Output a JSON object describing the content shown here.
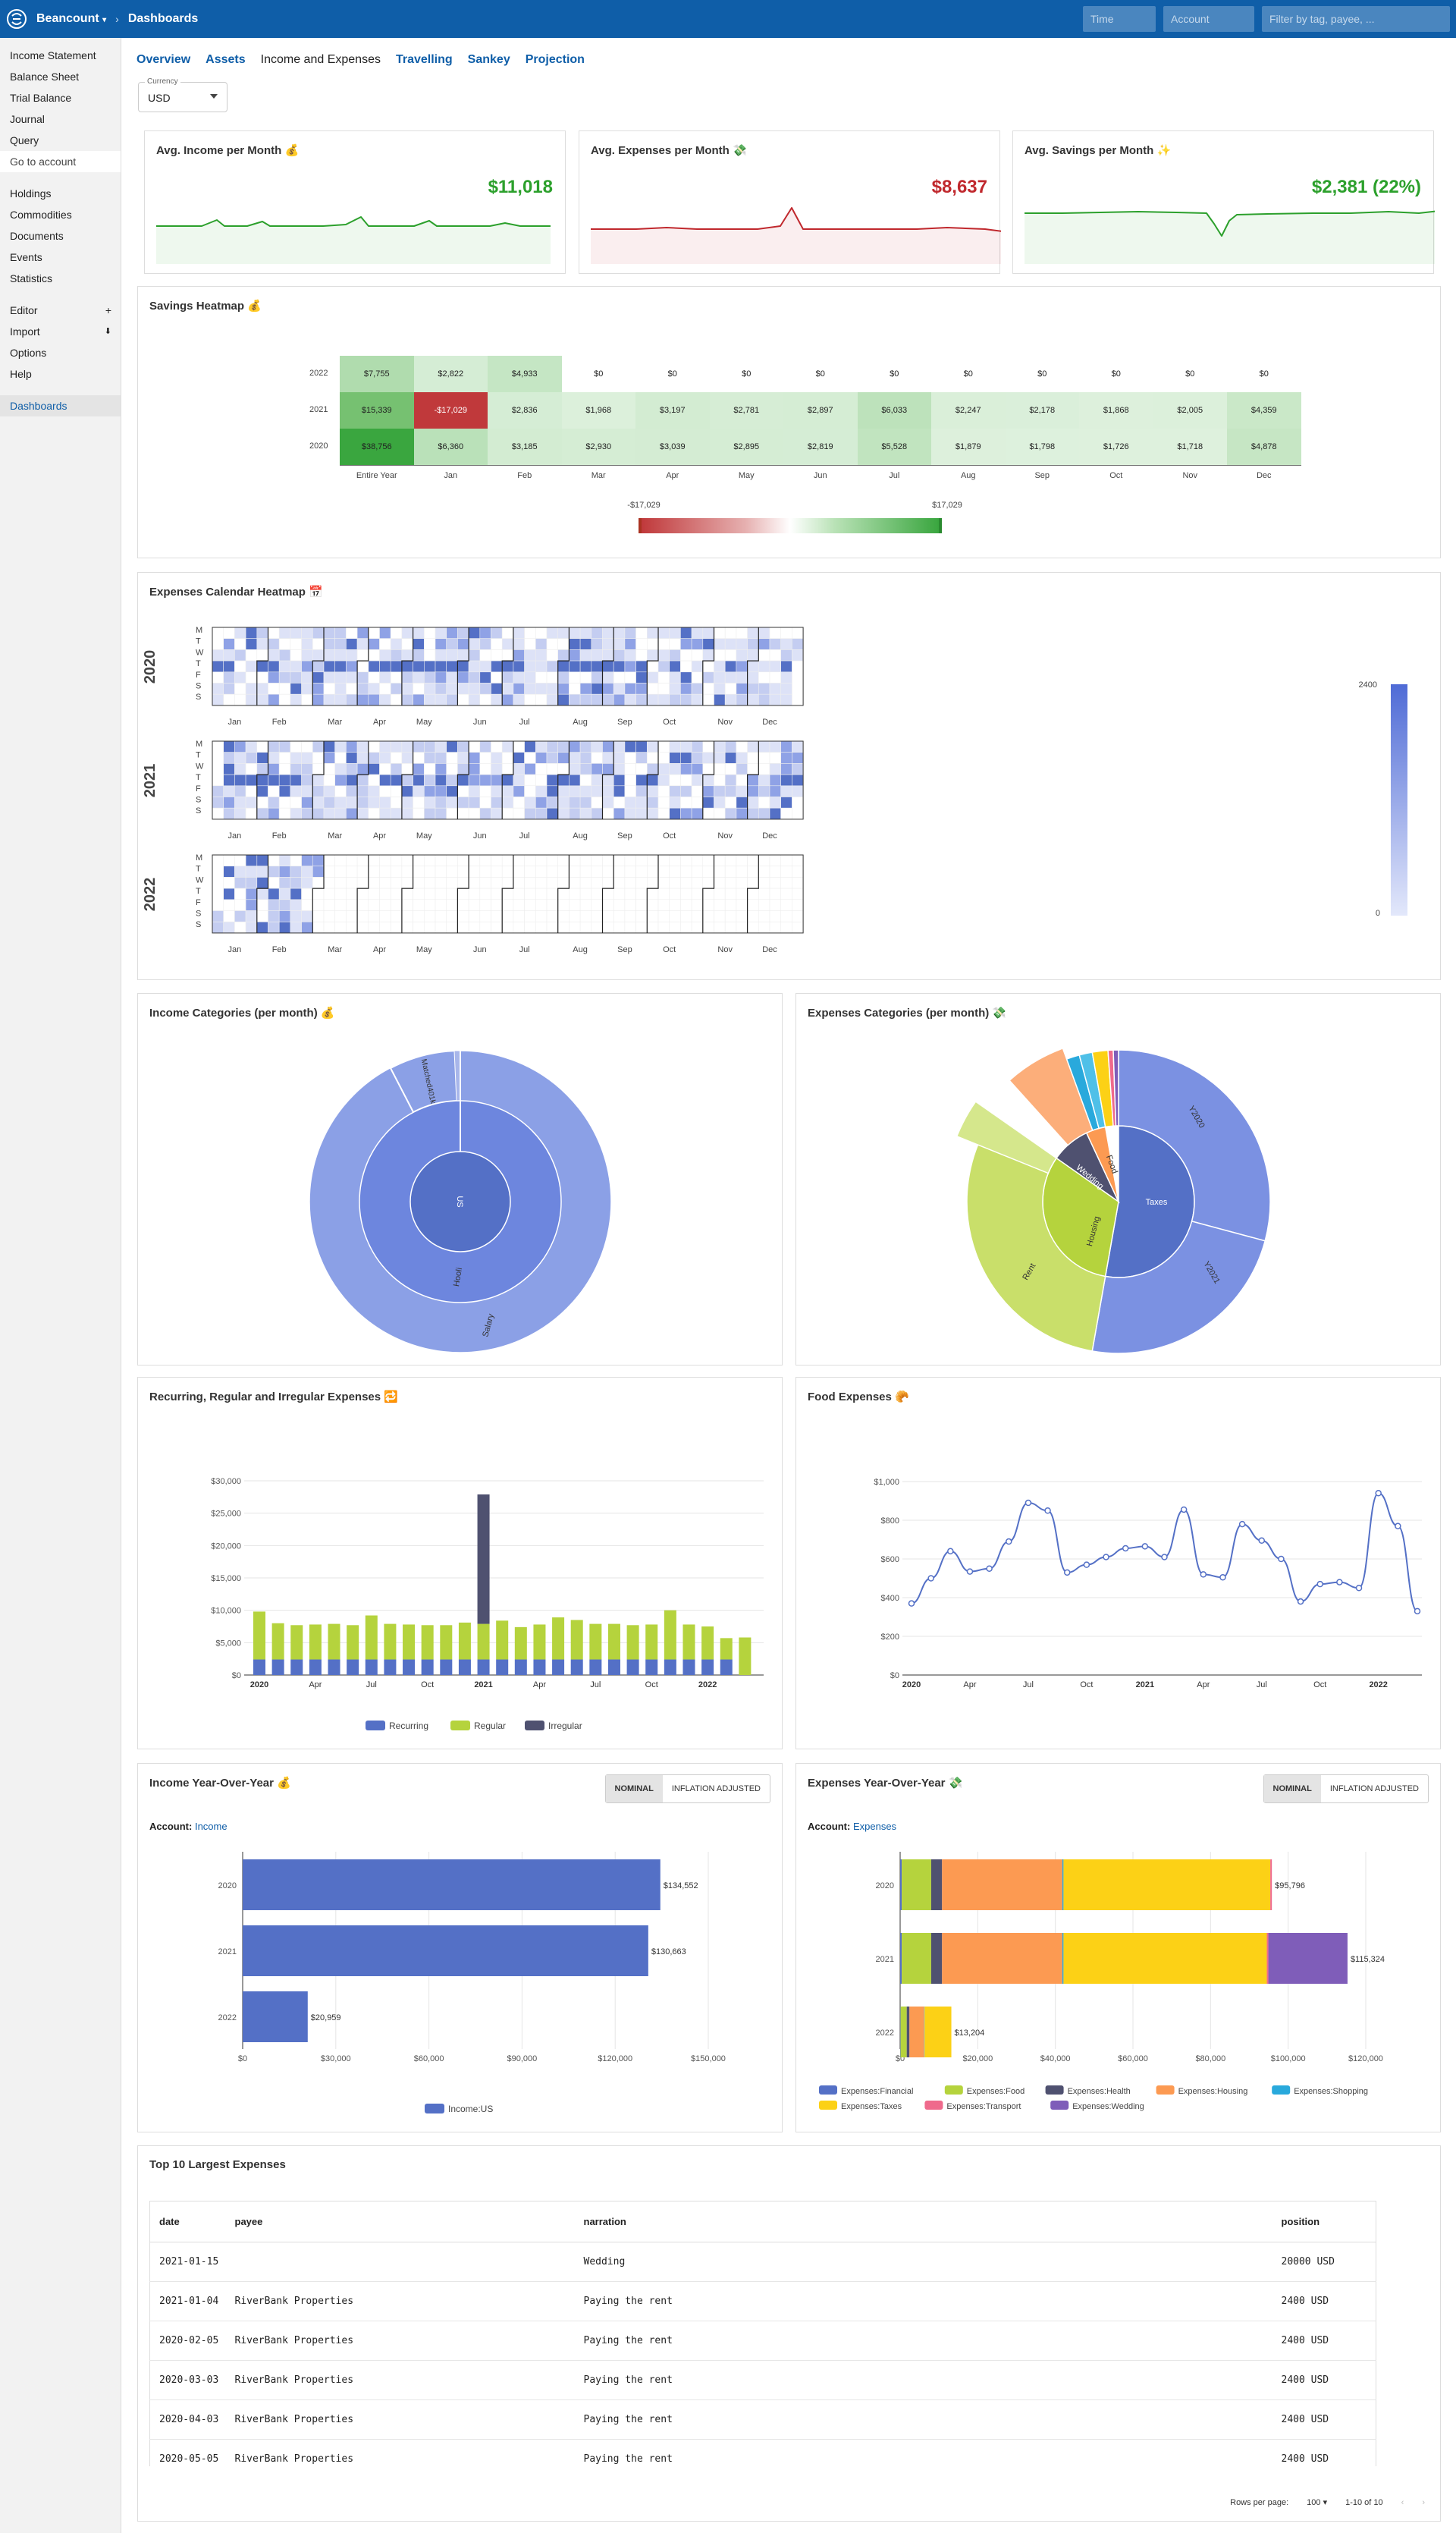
{
  "topbar": {
    "brand": "Beancount",
    "crumb": "›",
    "page": "Dashboards",
    "time_placeholder": "Time",
    "account_placeholder": "Account",
    "filter_placeholder": "Filter by tag, payee, ..."
  },
  "sidebar": {
    "group1": [
      "Income Statement",
      "Balance Sheet",
      "Trial Balance",
      "Journal",
      "Query",
      "Go to account"
    ],
    "group2": [
      "Holdings",
      "Commodities",
      "Documents",
      "Events",
      "Statistics"
    ],
    "group3": [
      "Editor",
      "Import",
      "Options",
      "Help"
    ],
    "group4": [
      "Dashboards"
    ],
    "editor_plus": "+",
    "import_icon": "⬇"
  },
  "tabs": [
    "Overview",
    "Assets",
    "Income and Expenses",
    "Travelling",
    "Sankey",
    "Projection"
  ],
  "currency": {
    "label": "Currency",
    "value": "USD"
  },
  "kpis": [
    {
      "title": "Avg. Income per Month 💰",
      "value": "$11,018",
      "color": "#2ca02c"
    },
    {
      "title": "Avg. Expenses per Month 💸",
      "value": "$8,637",
      "color": "#c0282d"
    },
    {
      "title": "Avg. Savings per Month ✨",
      "value": "$2,381 (22%)",
      "color": "#2ca02c"
    }
  ],
  "savings_heatmap": {
    "title": "Savings Heatmap 💰",
    "rows": [
      "2022",
      "2021",
      "2020"
    ],
    "cols": [
      "Entire Year",
      "Jan",
      "Feb",
      "Mar",
      "Apr",
      "May",
      "Jun",
      "Jul",
      "Aug",
      "Sep",
      "Oct",
      "Nov",
      "Dec"
    ],
    "values": [
      [
        "$7,755",
        "$2,822",
        "$4,933",
        "$0",
        "$0",
        "$0",
        "$0",
        "$0",
        "$0",
        "$0",
        "$0",
        "$0",
        "$0"
      ],
      [
        "$15,339",
        "-$17,029",
        "$2,836",
        "$1,968",
        "$3,197",
        "$2,781",
        "$2,897",
        "$6,033",
        "$2,247",
        "$2,178",
        "$1,868",
        "$2,005",
        "$4,359"
      ],
      [
        "$38,756",
        "$6,360",
        "$3,185",
        "$2,930",
        "$3,039",
        "$2,895",
        "$2,819",
        "$5,528",
        "$1,879",
        "$1,798",
        "$1,726",
        "$1,718",
        "$4,878"
      ]
    ],
    "raw": [
      [
        7755,
        2822,
        4933,
        0,
        0,
        0,
        0,
        0,
        0,
        0,
        0,
        0,
        0
      ],
      [
        15339,
        -17029,
        2836,
        1968,
        3197,
        2781,
        2897,
        6033,
        2247,
        2178,
        1868,
        2005,
        4359
      ],
      [
        38756,
        6360,
        3185,
        2930,
        3039,
        2895,
        2819,
        5528,
        1879,
        1798,
        1726,
        1718,
        4878
      ]
    ],
    "scale_min": "-$17,029",
    "scale_max": "$17,029"
  },
  "calendar": {
    "title": "Expenses Calendar Heatmap 📅",
    "years": [
      "2020",
      "2021",
      "2022"
    ],
    "days": [
      "M",
      "T",
      "W",
      "T",
      "F",
      "S",
      "S"
    ],
    "months": [
      "Jan",
      "Feb",
      "Mar",
      "Apr",
      "May",
      "Jun",
      "Jul",
      "Aug",
      "Sep",
      "Oct",
      "Nov",
      "Dec"
    ],
    "scale_max": "2400",
    "scale_min": "0"
  },
  "income_cat": {
    "title": "Income Categories (per month) 💰",
    "inner": "US",
    "middle": "Hooli",
    "outer": "Salary",
    "outer2": "Matched401k"
  },
  "expense_cat": {
    "title": "Expenses Categories (per month) 💸",
    "labels": {
      "taxes": "Taxes",
      "y2020": "Y2020",
      "y2021": "Y2021",
      "housing": "Housing",
      "rent": "Rent",
      "wedding": "Wedding",
      "food": "Food"
    }
  },
  "recurring": {
    "title": "Recurring, Regular and Irregular Expenses 🔁"
  },
  "food": {
    "title": "Food Expenses 🥐"
  },
  "income_yoy": {
    "title": "Income Year-Over-Year 💰",
    "toggle": [
      "NOMINAL",
      "INFLATION ADJUSTED"
    ],
    "account_label": "Account:",
    "account": "Income"
  },
  "expense_yoy": {
    "title": "Expenses Year-Over-Year 💸",
    "toggle": [
      "NOMINAL",
      "INFLATION ADJUSTED"
    ],
    "account_label": "Account:",
    "account": "Expenses"
  },
  "top10": {
    "title": "Top 10 Largest Expenses",
    "headers": [
      "date",
      "payee",
      "narration",
      "position"
    ],
    "rows": [
      [
        "2021-01-15",
        "",
        "Wedding",
        "20000 USD"
      ],
      [
        "2021-01-04",
        "RiverBank Properties",
        "Paying the rent",
        "2400 USD"
      ],
      [
        "2020-02-05",
        "RiverBank Properties",
        "Paying the rent",
        "2400 USD"
      ],
      [
        "2020-03-03",
        "RiverBank Properties",
        "Paying the rent",
        "2400 USD"
      ],
      [
        "2020-04-03",
        "RiverBank Properties",
        "Paying the rent",
        "2400 USD"
      ],
      [
        "2020-05-05",
        "RiverBank Properties",
        "Paying the rent",
        "2400 USD"
      ]
    ],
    "rows_per_page_label": "Rows per page:",
    "rows_per_page": "100",
    "range": "1-10 of 10"
  },
  "chart_data": [
    {
      "type": "bar",
      "title": "Recurring, Regular and Irregular Expenses 🔁",
      "categories": [
        "2020-01",
        "2020-02",
        "2020-03",
        "2020-04",
        "2020-05",
        "2020-06",
        "2020-07",
        "2020-08",
        "2020-09",
        "2020-10",
        "2020-11",
        "2020-12",
        "2021-01",
        "2021-02",
        "2021-03",
        "2021-04",
        "2021-05",
        "2021-06",
        "2021-07",
        "2021-08",
        "2021-09",
        "2021-10",
        "2021-11",
        "2021-12",
        "2022-01",
        "2022-02",
        "2022-03"
      ],
      "tick_labels": [
        "2020",
        "Apr",
        "Jul",
        "Oct",
        "2021",
        "Apr",
        "Jul",
        "Oct",
        "2022"
      ],
      "series": [
        {
          "name": "Recurring",
          "color": "#5470c6",
          "values": [
            2400,
            2400,
            2400,
            2400,
            2400,
            2400,
            2400,
            2400,
            2400,
            2400,
            2400,
            2400,
            2400,
            2400,
            2400,
            2400,
            2400,
            2400,
            2400,
            2400,
            2400,
            2400,
            2400,
            2400,
            2400,
            2400,
            0
          ]
        },
        {
          "name": "Regular",
          "color": "#b5d33d",
          "values": [
            7400,
            5600,
            5300,
            5400,
            5500,
            5300,
            6800,
            5500,
            5400,
            5300,
            5300,
            5700,
            5500,
            6000,
            5000,
            5400,
            6500,
            6100,
            5500,
            5500,
            5300,
            5400,
            7600,
            5400,
            5100,
            3300,
            5800
          ]
        },
        {
          "name": "Irregular",
          "color": "#4f5170",
          "values": [
            0,
            0,
            0,
            0,
            0,
            0,
            0,
            0,
            0,
            0,
            0,
            0,
            20000,
            0,
            0,
            0,
            0,
            0,
            0,
            0,
            0,
            0,
            0,
            0,
            0,
            0,
            0
          ]
        }
      ],
      "ylim": [
        0,
        30000
      ],
      "yticks": [
        "$0",
        "$5,000",
        "$10,000",
        "$15,000",
        "$20,000",
        "$25,000",
        "$30,000"
      ]
    },
    {
      "type": "line",
      "title": "Food Expenses 🥐",
      "values": [
        370,
        500,
        640,
        535,
        550,
        690,
        890,
        850,
        530,
        570,
        610,
        655,
        665,
        610,
        855,
        520,
        505,
        780,
        695,
        600,
        380,
        470,
        480,
        450,
        940,
        770,
        330
      ],
      "tick_labels": [
        "2020",
        "Apr",
        "Jul",
        "Oct",
        "2021",
        "Apr",
        "Jul",
        "Oct",
        "2022"
      ],
      "ylim": [
        0,
        1000
      ],
      "yticks": [
        "$0",
        "$200",
        "$400",
        "$600",
        "$800",
        "$1,000"
      ]
    },
    {
      "type": "bar",
      "title": "Income Year-Over-Year 💰",
      "categories": [
        "2020",
        "2021",
        "2022"
      ],
      "series": [
        {
          "name": "Income:US",
          "color": "#5470c6",
          "values": [
            134552,
            130663,
            20959
          ]
        }
      ],
      "value_labels": [
        "$134,552",
        "$130,663",
        "$20,959"
      ],
      "xlim": [
        0,
        150000
      ],
      "xticks": [
        "$0",
        "$30,000",
        "$60,000",
        "$90,000",
        "$120,000",
        "$150,000"
      ]
    },
    {
      "type": "bar",
      "title": "Expenses Year-Over-Year 💸",
      "categories": [
        "2020",
        "2021",
        "2022"
      ],
      "series": [
        {
          "name": "Expenses:Financial",
          "color": "#5470c6",
          "values": [
            400,
            400,
            100
          ]
        },
        {
          "name": "Expenses:Food",
          "color": "#b5d33d",
          "values": [
            7600,
            7600,
            1600
          ]
        },
        {
          "name": "Expenses:Health",
          "color": "#4f5170",
          "values": [
            2800,
            2800,
            700
          ]
        },
        {
          "name": "Expenses:Housing",
          "color": "#fc9a52",
          "values": [
            31000,
            31000,
            3800
          ]
        },
        {
          "name": "Expenses:Shopping",
          "color": "#29a9dc",
          "values": [
            300,
            300,
            100
          ]
        },
        {
          "name": "Expenses:Taxes",
          "color": "#fcd116",
          "values": [
            53300,
            52400,
            6900
          ]
        },
        {
          "name": "Expenses:Transport",
          "color": "#ef6a8c",
          "values": [
            400,
            400,
            0
          ]
        },
        {
          "name": "Expenses:Wedding",
          "color": "#7f5db9",
          "values": [
            0,
            20400,
            0
          ]
        }
      ],
      "value_labels": [
        "$95,796",
        "$115,324",
        "$13,204"
      ],
      "xlim": [
        0,
        120000
      ],
      "xticks": [
        "$0",
        "$20,000",
        "$40,000",
        "$60,000",
        "$80,000",
        "$100,000",
        "$120,000"
      ]
    }
  ]
}
